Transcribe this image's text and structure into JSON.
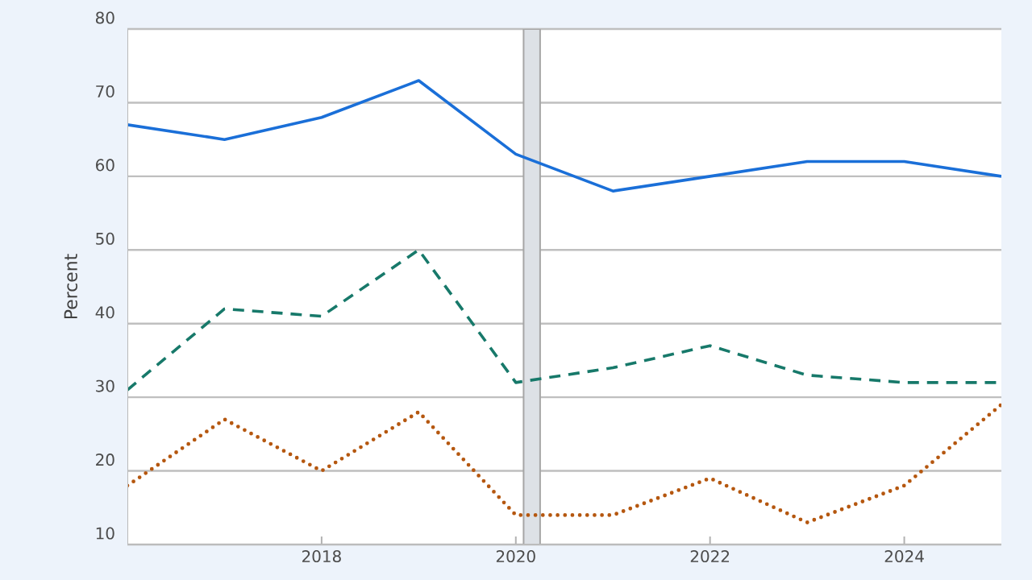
{
  "chart_data": {
    "type": "line",
    "ylabel": "Percent",
    "x": [
      2016,
      2017,
      2018,
      2019,
      2020,
      2021,
      2022,
      2023,
      2024,
      2025
    ],
    "series": [
      {
        "color": "#1a6fd8",
        "line_style": "solid",
        "values": [
          67,
          65,
          68,
          73,
          63,
          58,
          60,
          62,
          62,
          60
        ]
      },
      {
        "color": "#17796a",
        "line_style": "dashed",
        "values": [
          31,
          42,
          41,
          50,
          32,
          34,
          37,
          33,
          32,
          32
        ]
      },
      {
        "color": "#b5570f",
        "line_style": "dotted",
        "values": [
          18,
          27,
          20,
          28,
          14,
          14,
          19,
          13,
          18,
          29
        ]
      }
    ],
    "xlim": [
      2016,
      2025
    ],
    "ylim": [
      10,
      80
    ],
    "xticks": [
      2018,
      2020,
      2022,
      2024
    ],
    "yticks": [
      10,
      20,
      30,
      40,
      50,
      60,
      70,
      80
    ],
    "bands": [
      {
        "axis": "x",
        "from": 2020.08,
        "to": 2020.25,
        "color": "#dde1e6"
      }
    ],
    "grid": "y",
    "legend": false,
    "marker": "none"
  }
}
